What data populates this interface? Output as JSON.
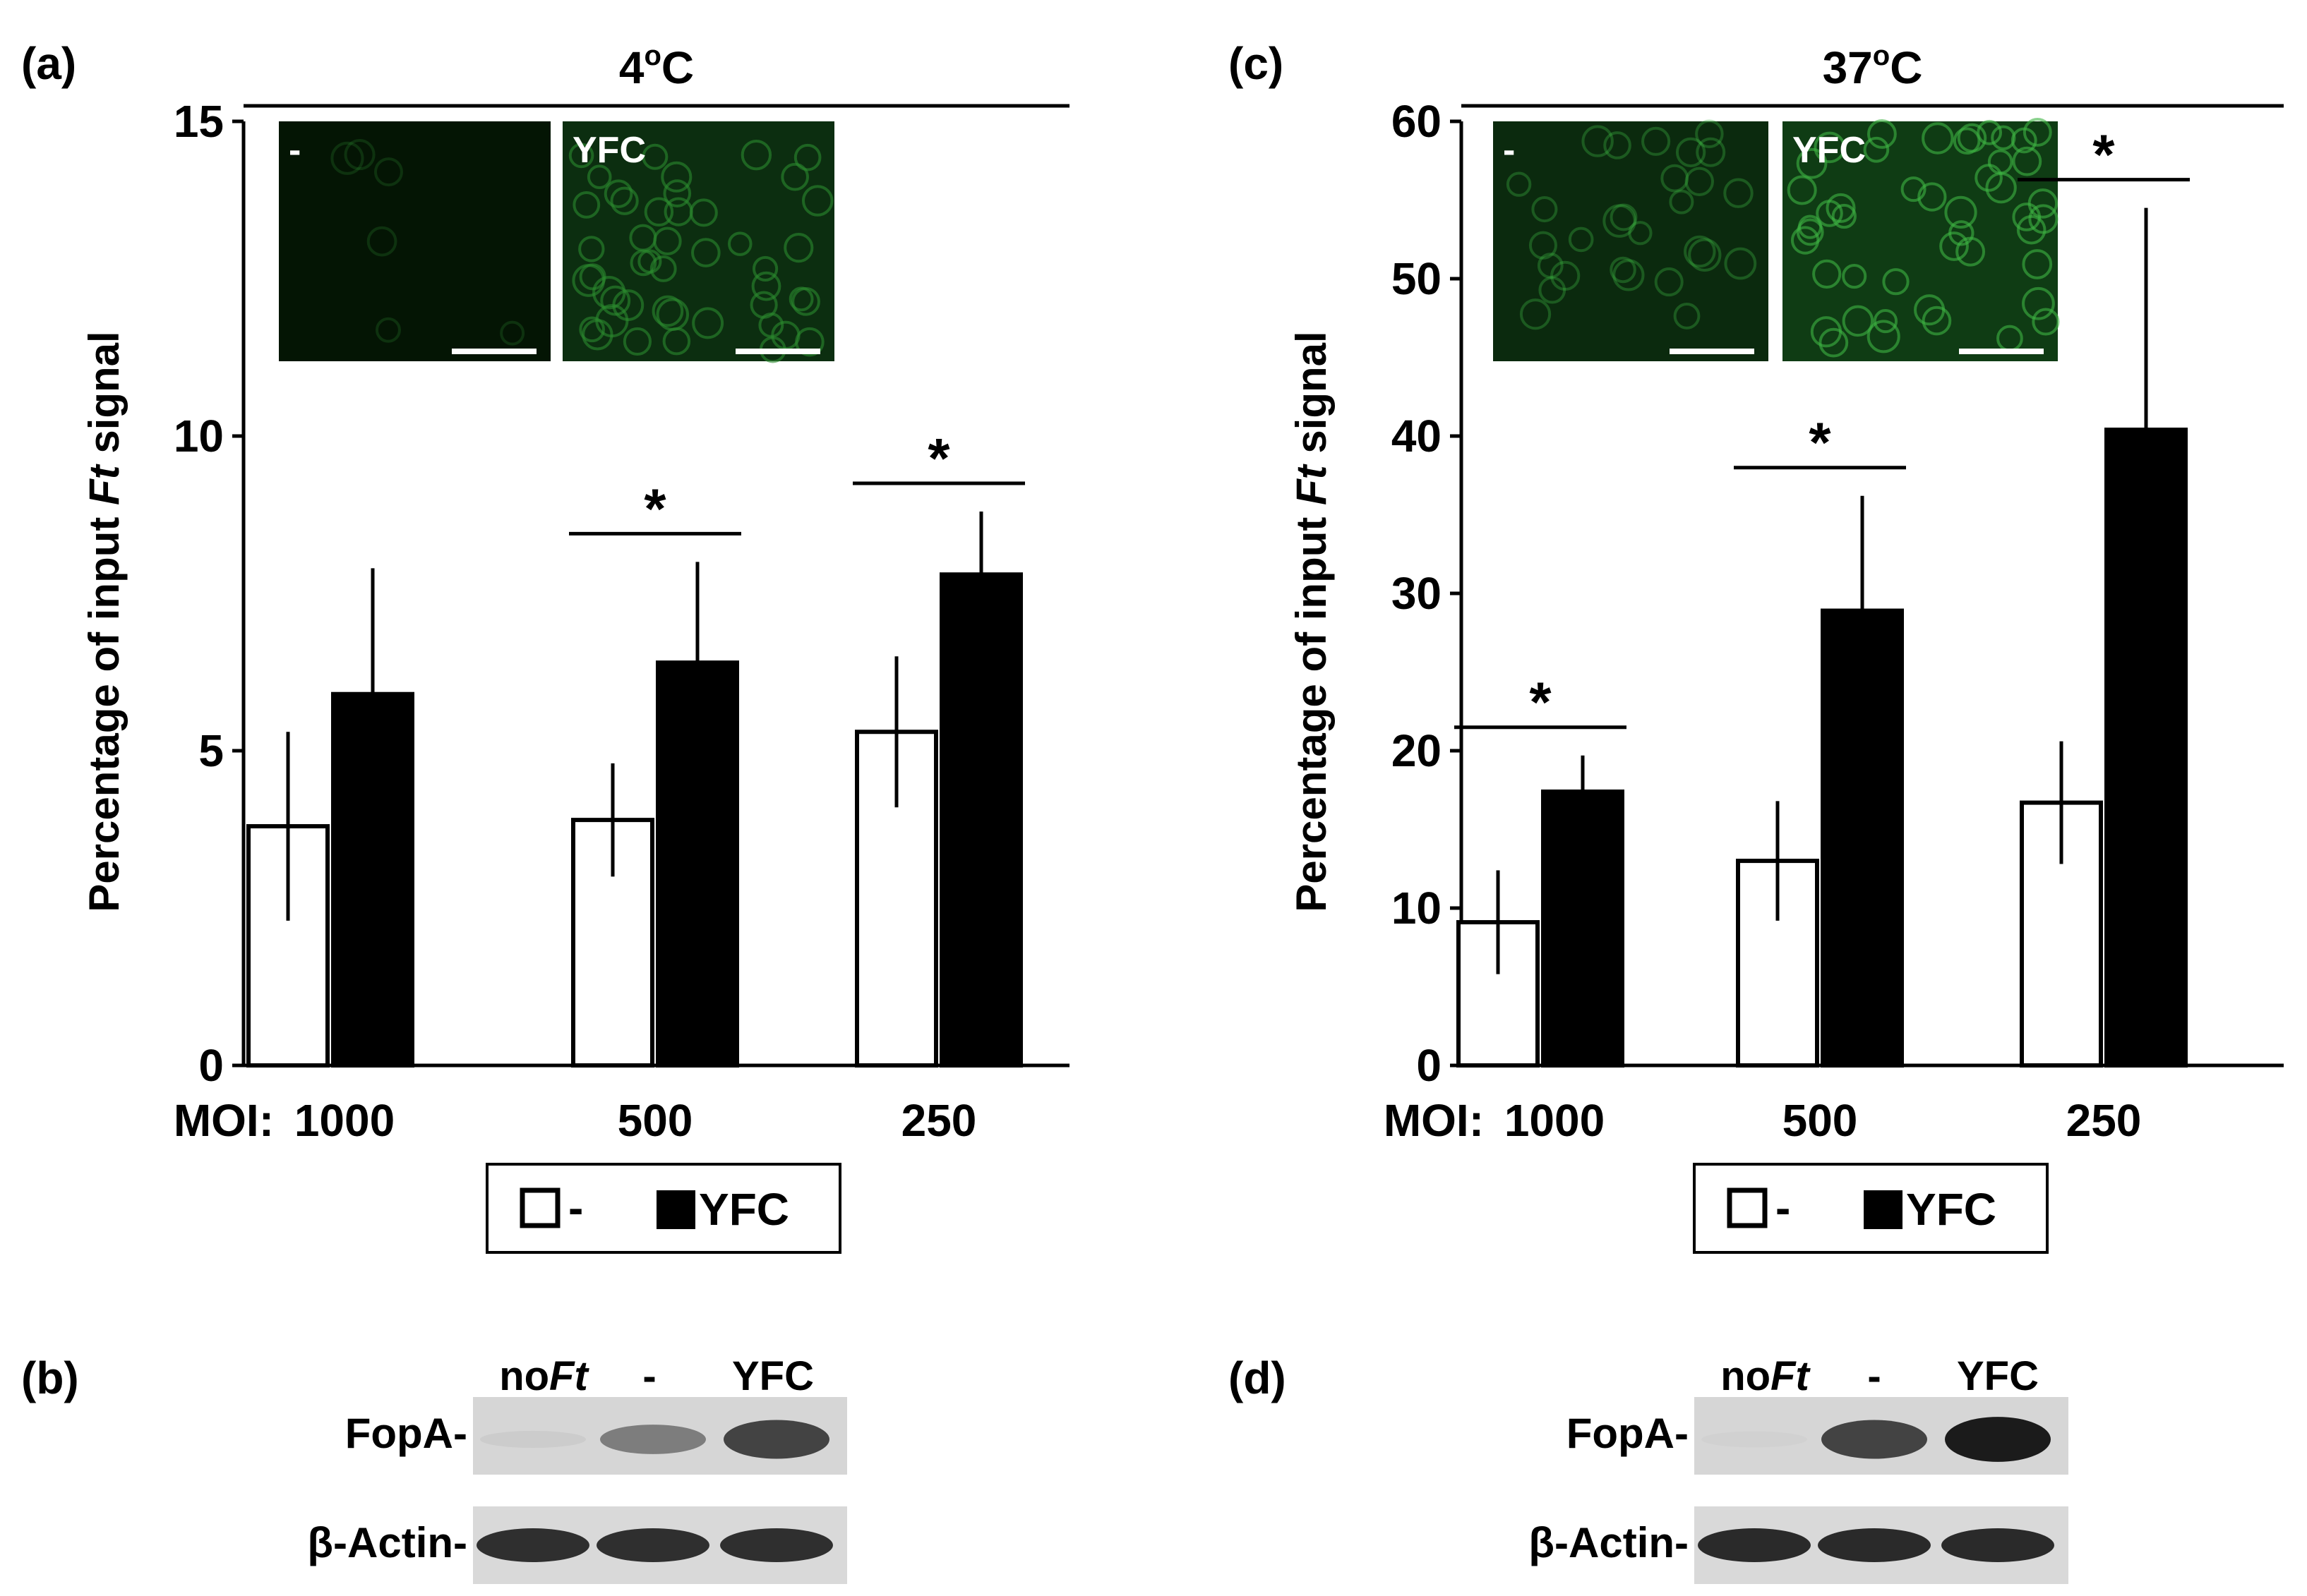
{
  "panels": [
    {
      "letter": "(a)",
      "temperature_prefix": "4",
      "temperature_sup": "o",
      "temperature_suffix": "C",
      "inset_labels": [
        "-",
        "YFC"
      ],
      "colors": {
        "inset_left": "#041504",
        "inset_right": "#0c2e10",
        "cell": "#2b8a2e"
      },
      "blot_letter": "(b)"
    },
    {
      "letter": "(c)",
      "temperature_prefix": "37",
      "temperature_sup": "o",
      "temperature_suffix": "C",
      "inset_labels": [
        "-",
        "YFC"
      ],
      "colors": {
        "inset_left": "#0b2a0e",
        "inset_right": "#0f3c14",
        "cell": "#3db443"
      },
      "blot_letter": "(d)"
    }
  ],
  "shared": {
    "ylabel_before": "Percentage of input ",
    "ylabel_italic": "Ft",
    "ylabel_after": " signal",
    "moi_label": "MOI:",
    "legend": [
      "-",
      "YFC"
    ],
    "blot_lanes": [
      "no",
      "Ft",
      "-",
      "YFC"
    ],
    "blot_rows": [
      "FopA-",
      "β-Actin-"
    ]
  },
  "chart_data": [
    {
      "type": "bar",
      "categories": [
        "1000",
        "500",
        "250"
      ],
      "series": [
        {
          "name": "-",
          "values": [
            3.8,
            3.9,
            5.3
          ],
          "errors": [
            1.5,
            0.9,
            1.2
          ],
          "color": "#ffffff"
        },
        {
          "name": "YFC",
          "values": [
            5.9,
            6.4,
            7.8
          ],
          "errors": [
            2.0,
            1.6,
            1.0
          ],
          "color": "#000000"
        }
      ],
      "significant": [
        "",
        "*",
        "*"
      ],
      "title": "4oC",
      "ylabel": "Percentage of input Ft signal",
      "ylim": [
        0,
        15
      ],
      "yticks": [
        0,
        5,
        10,
        15
      ],
      "grid": false,
      "legend_position": "bottom"
    },
    {
      "type": "bar",
      "categories": [
        "1000",
        "500",
        "250"
      ],
      "series": [
        {
          "name": "-",
          "values": [
            9.1,
            13.0,
            16.7
          ],
          "errors": [
            3.3,
            3.8,
            3.9
          ],
          "color": "#ffffff"
        },
        {
          "name": "YFC",
          "values": [
            17.4,
            28.9,
            40.4
          ],
          "errors": [
            2.3,
            7.3,
            14.1
          ],
          "color": "#000000"
        }
      ],
      "significant": [
        "*",
        "*",
        "*"
      ],
      "title": "37oC",
      "ylabel": "Percentage of input Ft signal",
      "ylim": [
        0,
        60
      ],
      "yticks": [
        0,
        10,
        20,
        30,
        40,
        50,
        60
      ],
      "grid": false,
      "legend_position": "bottom"
    }
  ],
  "blots": [
    {
      "fopa_intensity": [
        0.05,
        0.45,
        0.75
      ],
      "actin_intensity": [
        0.85,
        0.85,
        0.85
      ]
    },
    {
      "fopa_intensity": [
        0.02,
        0.75,
        0.95
      ],
      "actin_intensity": [
        0.88,
        0.88,
        0.88
      ]
    }
  ]
}
